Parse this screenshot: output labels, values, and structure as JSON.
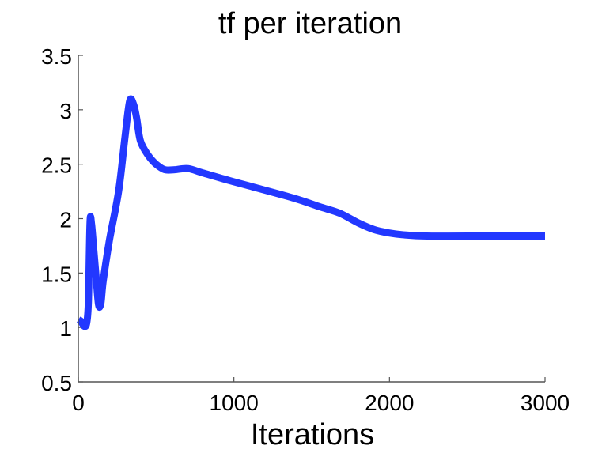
{
  "chart_data": {
    "type": "line",
    "title": "tf per iteration",
    "xlabel": "Iterations",
    "ylabel": "",
    "xlim": [
      0,
      3000
    ],
    "ylim": [
      0.5,
      3.5
    ],
    "xticks": [
      0,
      1000,
      2000,
      3000
    ],
    "xtick_labels": [
      "0",
      "1000",
      "2000",
      "3000"
    ],
    "yticks": [
      0.5,
      1,
      1.5,
      2,
      2.5,
      3,
      3.5
    ],
    "ytick_labels": [
      "0.5",
      "1",
      "1.5",
      "2",
      "2.5",
      "3",
      "3.5"
    ],
    "grid": false,
    "legend": null,
    "series": [
      {
        "name": "tf",
        "color": "#2238ff",
        "x": [
          0,
          15,
          40,
          55,
          65,
          75,
          85,
          100,
          115,
          130,
          145,
          160,
          200,
          260,
          300,
          330,
          355,
          375,
          400,
          450,
          500,
          555,
          620,
          705,
          800,
          970,
          1100,
          1380,
          1550,
          1680,
          1800,
          1900,
          1990,
          2100,
          2240,
          2500,
          3000
        ],
        "y": [
          1.07,
          1.06,
          1.01,
          1.05,
          1.25,
          1.96,
          1.95,
          1.7,
          1.45,
          1.21,
          1.22,
          1.43,
          1.8,
          2.26,
          2.75,
          3.08,
          3.05,
          2.92,
          2.71,
          2.58,
          2.5,
          2.45,
          2.45,
          2.46,
          2.42,
          2.35,
          2.3,
          2.19,
          2.11,
          2.05,
          1.96,
          1.9,
          1.87,
          1.85,
          1.84,
          1.84,
          1.84
        ]
      }
    ]
  },
  "colors": {
    "line": "#2238ff",
    "axis": "#555555",
    "text": "#000000",
    "background": "#ffffff"
  }
}
